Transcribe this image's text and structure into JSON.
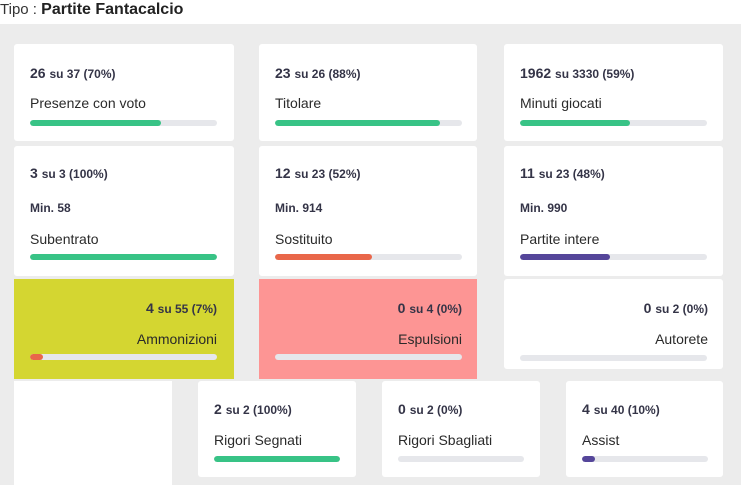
{
  "header": {
    "type_label": "Tipo : ",
    "type_value": "Partite Fantacalcio"
  },
  "cards": {
    "presenze": {
      "value": "26",
      "detail": "su 37 (70%)",
      "label": "Presenze con voto",
      "progress": 0.7,
      "color": "#38c386"
    },
    "titolare": {
      "value": "23",
      "detail": "su 26 (88%)",
      "label": "Titolare",
      "progress": 0.88,
      "color": "#38c386"
    },
    "minuti": {
      "value": "1962",
      "detail": "su 3330 (59%)",
      "label": "Minuti giocati",
      "progress": 0.59,
      "color": "#38c386"
    },
    "subentrato": {
      "value": "3",
      "detail": "su 3 (100%)",
      "min": "Min. 58",
      "label": "Subentrato",
      "progress": 1.0,
      "color": "#38c386"
    },
    "sostituito": {
      "value": "12",
      "detail": "su 23 (52%)",
      "min": "Min. 914",
      "label": "Sostituito",
      "progress": 0.52,
      "color": "#e9674a"
    },
    "intere": {
      "value": "11",
      "detail": "su 23 (48%)",
      "min": "Min. 990",
      "label": "Partite intere",
      "progress": 0.48,
      "color": "#55469a"
    },
    "ammonizioni": {
      "value": "4",
      "detail": "su 55 (7%)",
      "label": "Ammonizioni",
      "progress": 0.07,
      "color": "#e9674a"
    },
    "espulsioni": {
      "value": "0",
      "detail": "su 4 (0%)",
      "label": "Espulsioni",
      "progress": 0.0,
      "color": "#e9674a"
    },
    "autorete": {
      "value": "0",
      "detail": "su 2 (0%)",
      "label": "Autorete",
      "progress": 0.0,
      "color": "#38c386"
    },
    "rigori_segnati": {
      "value": "2",
      "detail": "su 2 (100%)",
      "label": "Rigori Segnati",
      "progress": 1.0,
      "color": "#38c386"
    },
    "rigori_sbagliati": {
      "value": "0",
      "detail": "su 2 (0%)",
      "label": "Rigori Sbagliati",
      "progress": 0.0,
      "color": "#38c386"
    },
    "assist": {
      "value": "4",
      "detail": "su 40 (10%)",
      "label": "Assist",
      "progress": 0.1,
      "color": "#55469a"
    }
  }
}
